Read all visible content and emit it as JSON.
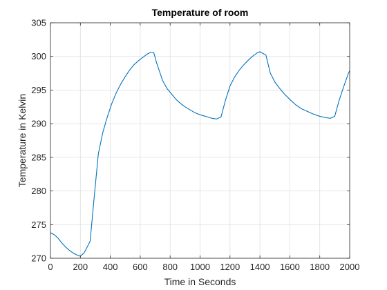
{
  "chart_data": {
    "type": "line",
    "title": "Temperature of room",
    "xlabel": "Time in Seconds",
    "ylabel": "Temperature  in Kelvin",
    "xlim": [
      0,
      2000
    ],
    "ylim": [
      270,
      305
    ],
    "xticks": [
      0,
      200,
      400,
      600,
      800,
      1000,
      1200,
      1400,
      1600,
      1800,
      2000
    ],
    "yticks": [
      270,
      275,
      280,
      285,
      290,
      295,
      300,
      305
    ],
    "grid": true,
    "series": [
      {
        "color": "#0072bd",
        "x": [
          0,
          25,
          50,
          75,
          100,
          125,
          150,
          175,
          200,
          225,
          265,
          290,
          320,
          350,
          380,
          410,
          440,
          470,
          500,
          530,
          560,
          590,
          620,
          650,
          670,
          690,
          710,
          730,
          750,
          780,
          810,
          840,
          870,
          900,
          930,
          960,
          990,
          1020,
          1050,
          1080,
          1110,
          1140,
          1170,
          1200,
          1230,
          1260,
          1290,
          1320,
          1350,
          1380,
          1400,
          1440,
          1470,
          1500,
          1530,
          1560,
          1600,
          1640,
          1680,
          1720,
          1760,
          1800,
          1840,
          1870,
          1900,
          1930,
          1960,
          1990,
          2000
        ],
        "y": [
          273.8,
          273.5,
          273.0,
          272.3,
          271.7,
          271.2,
          270.8,
          270.5,
          270.3,
          270.8,
          272.5,
          278.5,
          285.5,
          288.7,
          291.0,
          293.0,
          294.6,
          295.9,
          297.0,
          298.0,
          298.8,
          299.4,
          299.9,
          300.4,
          300.6,
          300.6,
          299.0,
          297.7,
          296.4,
          295.2,
          294.4,
          293.6,
          293.0,
          292.5,
          292.1,
          291.7,
          291.4,
          291.2,
          291.0,
          290.8,
          290.7,
          291.0,
          293.5,
          295.6,
          296.9,
          297.9,
          298.7,
          299.4,
          300.0,
          300.5,
          300.7,
          300.2,
          297.5,
          296.2,
          295.3,
          294.5,
          293.6,
          292.8,
          292.2,
          291.8,
          291.4,
          291.1,
          290.9,
          290.8,
          291.1,
          293.5,
          295.5,
          297.4,
          297.9
        ]
      }
    ]
  }
}
